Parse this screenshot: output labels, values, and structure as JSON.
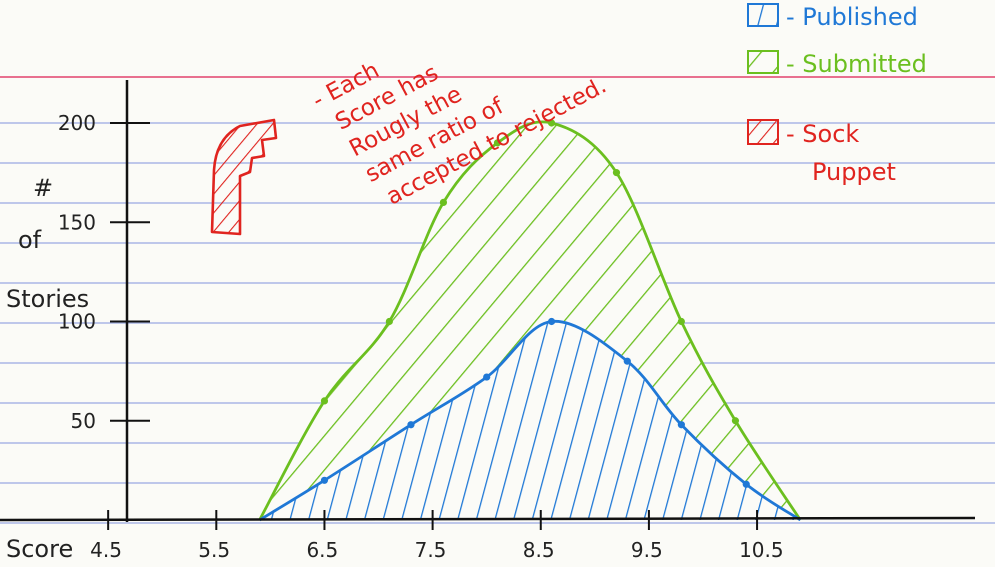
{
  "chart_data": {
    "type": "area",
    "title": "",
    "xlabel": "Score",
    "ylabel_lines": [
      "#",
      "of",
      "Stories"
    ],
    "x_ticks": [
      "4.5",
      "5.5",
      "6.5",
      "7.5",
      "8.5",
      "9.5",
      "10.5"
    ],
    "y_ticks": [
      "50",
      "100",
      "150",
      "200"
    ],
    "xlim": [
      3.5,
      12.7
    ],
    "ylim": [
      0,
      200
    ],
    "series": [
      {
        "name": "Submitted",
        "color": "#6bbf1f",
        "x": [
          5.9,
          6.5,
          7.1,
          7.6,
          8.1,
          8.6,
          9.2,
          9.8,
          10.3,
          10.9
        ],
        "y": [
          0,
          60,
          100,
          160,
          190,
          200,
          175,
          100,
          50,
          0
        ]
      },
      {
        "name": "Published",
        "color": "#1f78d6",
        "x": [
          5.9,
          6.5,
          7.3,
          8.0,
          8.6,
          9.3,
          9.8,
          10.4,
          10.9
        ],
        "y": [
          0,
          20,
          48,
          72,
          100,
          80,
          48,
          18,
          0
        ]
      }
    ],
    "legend": [
      {
        "label": "- Published",
        "color": "#1f78d6"
      },
      {
        "label": "- Submitted",
        "color": "#6bbf1f"
      },
      {
        "label": "- Sock",
        "label2": "Puppet",
        "color": "#e0241f"
      }
    ],
    "annotation": [
      "- Each",
      "Score has",
      "Rougly the",
      "same ratio of",
      "accepted to rejected."
    ]
  }
}
